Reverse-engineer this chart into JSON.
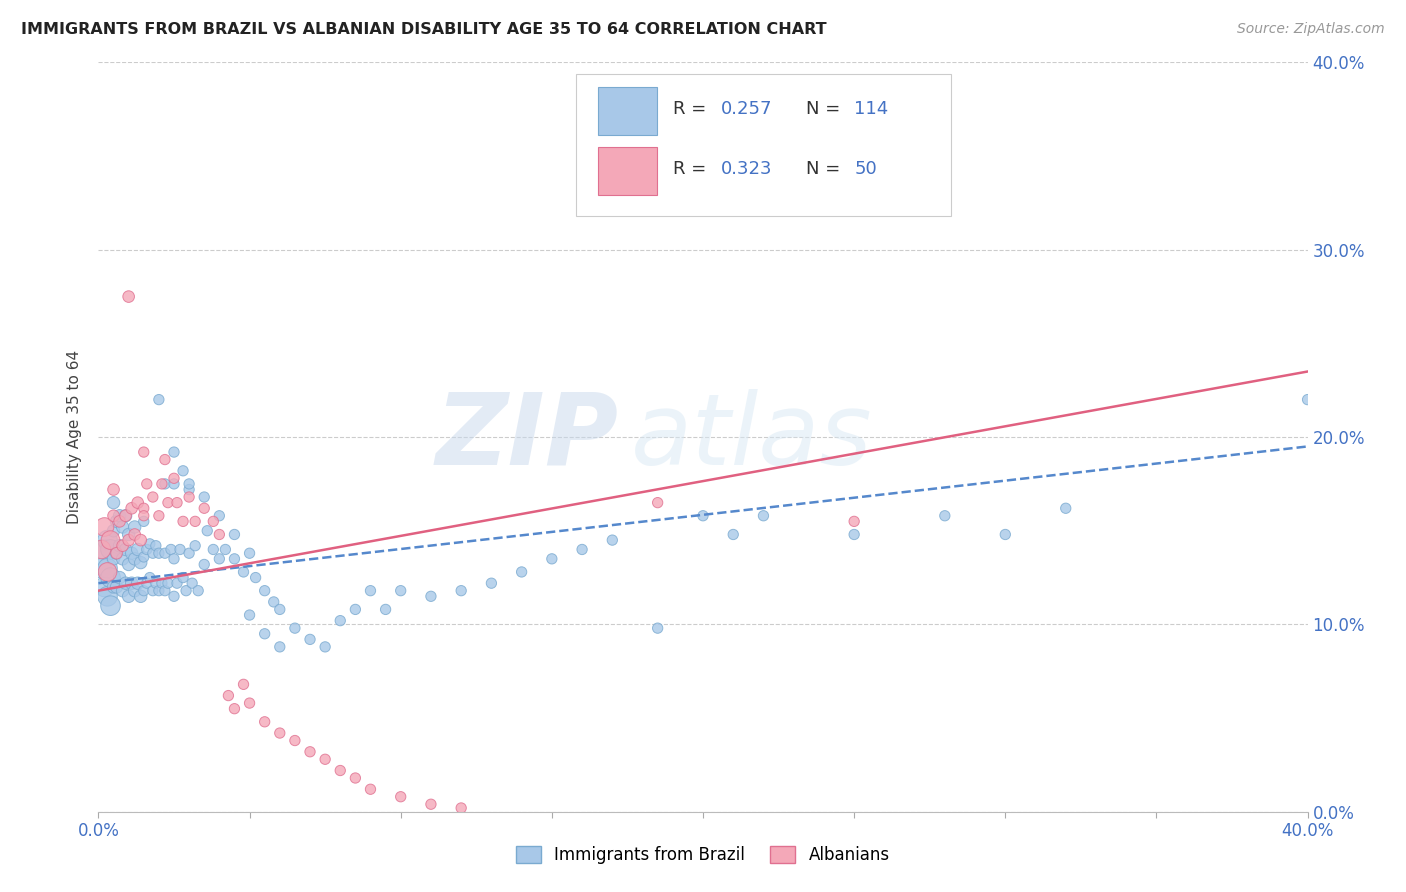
{
  "title": "IMMIGRANTS FROM BRAZIL VS ALBANIAN DISABILITY AGE 35 TO 64 CORRELATION CHART",
  "source": "Source: ZipAtlas.com",
  "ylabel": "Disability Age 35 to 64",
  "xlim": [
    0.0,
    0.4
  ],
  "ylim": [
    0.0,
    0.4
  ],
  "legend1_label": "Immigrants from Brazil",
  "legend2_label": "Albanians",
  "r1": 0.257,
  "n1": 114,
  "r2": 0.323,
  "n2": 50,
  "color_brazil": "#a8c8e8",
  "color_albanian": "#f4a8b8",
  "color_brazil_edge": "#7aaad0",
  "color_albanian_edge": "#e07090",
  "color_brazil_line": "#5588cc",
  "color_albanian_line": "#e06080",
  "color_tick": "#4472c4",
  "watermark_zip": "ZIP",
  "watermark_atlas": "atlas",
  "trendline_brazil_start_y": 0.122,
  "trendline_brazil_end_y": 0.195,
  "trendline_albanian_start_y": 0.118,
  "trendline_albanian_end_y": 0.235,
  "brazil_x": [
    0.001,
    0.002,
    0.002,
    0.003,
    0.003,
    0.003,
    0.004,
    0.004,
    0.004,
    0.005,
    0.005,
    0.005,
    0.005,
    0.006,
    0.006,
    0.006,
    0.007,
    0.007,
    0.007,
    0.008,
    0.008,
    0.008,
    0.009,
    0.009,
    0.009,
    0.01,
    0.01,
    0.01,
    0.011,
    0.011,
    0.012,
    0.012,
    0.012,
    0.013,
    0.013,
    0.014,
    0.014,
    0.015,
    0.015,
    0.015,
    0.016,
    0.016,
    0.017,
    0.017,
    0.018,
    0.018,
    0.019,
    0.019,
    0.02,
    0.02,
    0.021,
    0.022,
    0.022,
    0.023,
    0.024,
    0.025,
    0.025,
    0.026,
    0.027,
    0.028,
    0.029,
    0.03,
    0.031,
    0.032,
    0.033,
    0.035,
    0.036,
    0.038,
    0.04,
    0.042,
    0.045,
    0.048,
    0.05,
    0.052,
    0.055,
    0.058,
    0.06,
    0.065,
    0.07,
    0.075,
    0.08,
    0.085,
    0.09,
    0.095,
    0.1,
    0.11,
    0.12,
    0.13,
    0.14,
    0.15,
    0.16,
    0.17,
    0.185,
    0.2,
    0.21,
    0.22,
    0.25,
    0.28,
    0.3,
    0.32,
    0.025,
    0.028,
    0.03,
    0.02,
    0.022,
    0.025,
    0.03,
    0.035,
    0.04,
    0.045,
    0.05,
    0.055,
    0.06,
    0.4
  ],
  "brazil_y": [
    0.13,
    0.12,
    0.14,
    0.115,
    0.13,
    0.145,
    0.125,
    0.14,
    0.11,
    0.12,
    0.135,
    0.15,
    0.165,
    0.12,
    0.138,
    0.155,
    0.125,
    0.142,
    0.158,
    0.118,
    0.135,
    0.152,
    0.122,
    0.14,
    0.158,
    0.115,
    0.132,
    0.148,
    0.122,
    0.138,
    0.118,
    0.135,
    0.152,
    0.122,
    0.14,
    0.115,
    0.133,
    0.118,
    0.136,
    0.155,
    0.122,
    0.14,
    0.125,
    0.143,
    0.118,
    0.138,
    0.122,
    0.142,
    0.118,
    0.138,
    0.122,
    0.118,
    0.138,
    0.122,
    0.14,
    0.115,
    0.135,
    0.122,
    0.14,
    0.125,
    0.118,
    0.138,
    0.122,
    0.142,
    0.118,
    0.132,
    0.15,
    0.14,
    0.135,
    0.14,
    0.135,
    0.128,
    0.138,
    0.125,
    0.118,
    0.112,
    0.108,
    0.098,
    0.092,
    0.088,
    0.102,
    0.108,
    0.118,
    0.108,
    0.118,
    0.115,
    0.118,
    0.122,
    0.128,
    0.135,
    0.14,
    0.145,
    0.098,
    0.158,
    0.148,
    0.158,
    0.148,
    0.158,
    0.148,
    0.162,
    0.192,
    0.182,
    0.172,
    0.22,
    0.175,
    0.175,
    0.175,
    0.168,
    0.158,
    0.148,
    0.105,
    0.095,
    0.088,
    0.22
  ],
  "albanian_x": [
    0.001,
    0.002,
    0.003,
    0.004,
    0.005,
    0.005,
    0.006,
    0.007,
    0.008,
    0.009,
    0.01,
    0.011,
    0.012,
    0.013,
    0.014,
    0.015,
    0.015,
    0.016,
    0.018,
    0.02,
    0.021,
    0.022,
    0.023,
    0.025,
    0.026,
    0.028,
    0.03,
    0.032,
    0.035,
    0.038,
    0.04,
    0.043,
    0.045,
    0.048,
    0.05,
    0.055,
    0.06,
    0.065,
    0.07,
    0.075,
    0.08,
    0.085,
    0.09,
    0.1,
    0.11,
    0.12,
    0.185,
    0.25,
    0.01,
    0.015
  ],
  "albanian_y": [
    0.14,
    0.152,
    0.128,
    0.145,
    0.158,
    0.172,
    0.138,
    0.155,
    0.142,
    0.158,
    0.145,
    0.162,
    0.148,
    0.165,
    0.145,
    0.162,
    0.192,
    0.175,
    0.168,
    0.158,
    0.175,
    0.188,
    0.165,
    0.178,
    0.165,
    0.155,
    0.168,
    0.155,
    0.162,
    0.155,
    0.148,
    0.062,
    0.055,
    0.068,
    0.058,
    0.048,
    0.042,
    0.038,
    0.032,
    0.028,
    0.022,
    0.018,
    0.012,
    0.008,
    0.004,
    0.002,
    0.165,
    0.155,
    0.275,
    0.158
  ]
}
